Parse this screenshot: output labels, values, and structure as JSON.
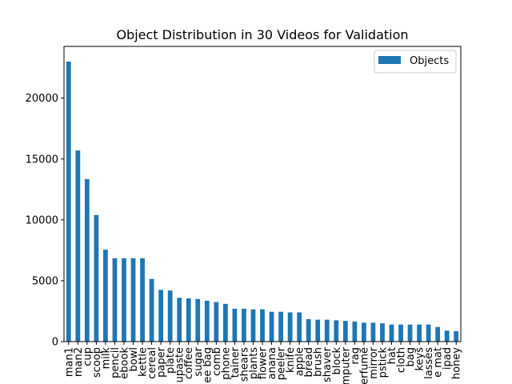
{
  "chart_data": {
    "type": "bar",
    "title": "Object Distribution in 30 Videos for Validation",
    "xlabel": "",
    "ylabel": "",
    "ylim": [
      0,
      24250
    ],
    "yticks": [
      0,
      5000,
      10000,
      15000,
      20000
    ],
    "grid": false,
    "legend_position": "top-right",
    "categories": [
      "man1",
      "man2",
      "cup",
      "scoop",
      "milk",
      "pencil",
      "notebook",
      "bowl",
      "kettle",
      "cereal",
      "paper",
      "plate",
      "toothpaste",
      "coffee",
      "sugar",
      "tea bag",
      "comb",
      "phone",
      "container",
      "shears",
      "plants",
      "flower",
      "banana",
      "peeler",
      "knife",
      "apple",
      "bread",
      "brush",
      "shaver",
      "block",
      "computer",
      "rag",
      "perfume",
      "mirror",
      "lipstick",
      "hat",
      "cloth",
      "bag",
      "keys",
      "glasses",
      "place mat",
      "ipad",
      "honey"
    ],
    "tick_labels": [
      "man1",
      "man2",
      "cup",
      "scoop",
      "milk",
      "pencil",
      "ebook",
      "bowl",
      "kettle",
      "cereal",
      "paper",
      "plate",
      "upaste",
      "coffee",
      "sugar",
      "ee bag",
      "comb",
      "phone",
      "tainer",
      "shears",
      "plants",
      "flower",
      "anana",
      "peeler",
      "knife",
      "apple",
      "bread",
      "brush",
      "shaver",
      "block",
      "mputer",
      "rag",
      "erfume",
      "mirror",
      "pstick",
      "hat",
      "cloth",
      "bag",
      "keys",
      "lasses",
      "e mat",
      "ipad",
      "honey"
    ],
    "series": [
      {
        "name": "Objects",
        "color": "#1f77b4",
        "values": [
          23000,
          15700,
          13350,
          10400,
          7550,
          6850,
          6850,
          6850,
          6850,
          5150,
          4250,
          4200,
          3600,
          3550,
          3500,
          3350,
          3250,
          3100,
          2700,
          2700,
          2650,
          2650,
          2450,
          2450,
          2400,
          2400,
          1850,
          1800,
          1800,
          1750,
          1700,
          1650,
          1550,
          1550,
          1500,
          1400,
          1400,
          1400,
          1400,
          1400,
          1200,
          900,
          850
        ]
      }
    ]
  }
}
